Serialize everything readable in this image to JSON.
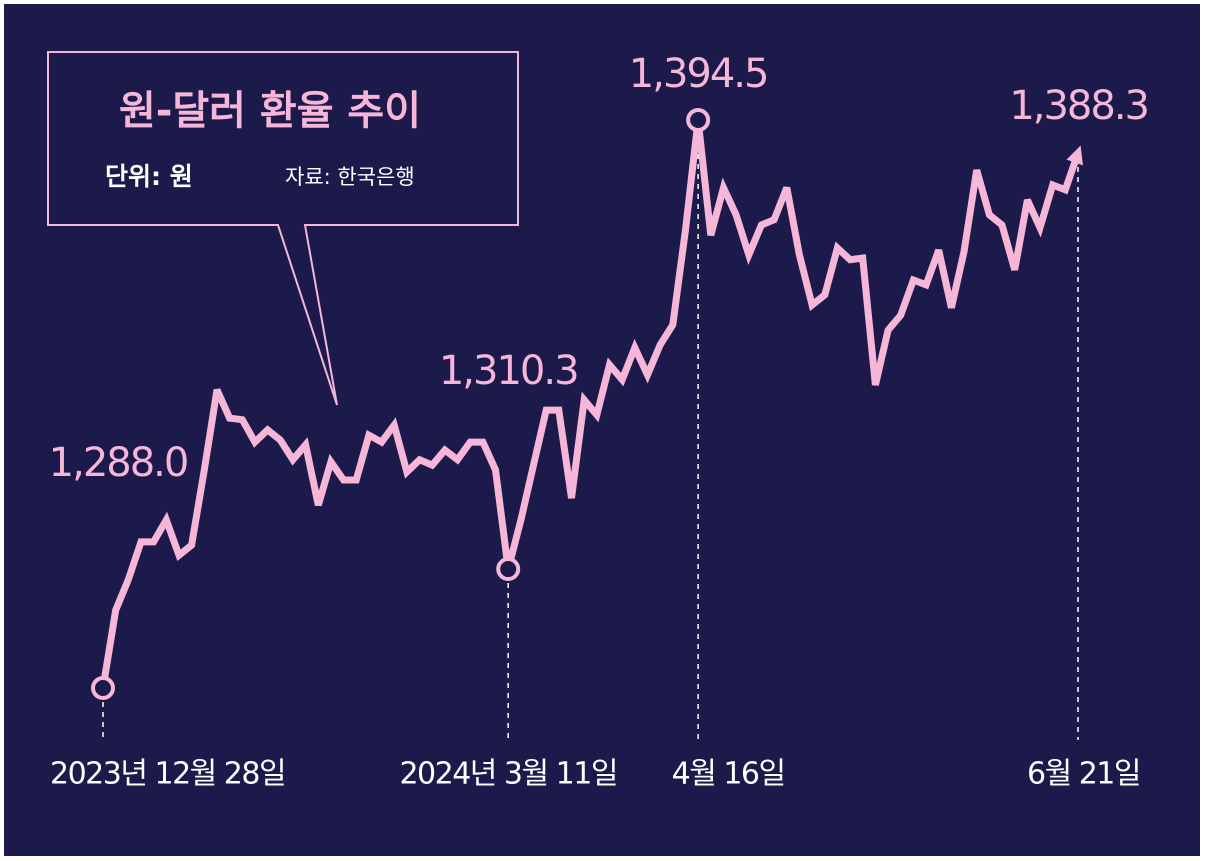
{
  "chart_data": {
    "type": "line",
    "title": "원-달러 환율 추이",
    "subtitle": "단위: 원",
    "source": "자료: 한국은행",
    "categories": [
      "2023년 12월 28일",
      null,
      null,
      null,
      null,
      null,
      null,
      null,
      null,
      null,
      null,
      null,
      null,
      null,
      null,
      null,
      null,
      null,
      null,
      null,
      null,
      null,
      null,
      null,
      null,
      null,
      null,
      null,
      null,
      null,
      null,
      null,
      "2024년 3월 11일",
      null,
      null,
      null,
      null,
      null,
      null,
      null,
      null,
      null,
      null,
      null,
      null,
      null,
      null,
      "4월 16일",
      null,
      null,
      null,
      null,
      null,
      null,
      null,
      null,
      null,
      null,
      null,
      null,
      null,
      null,
      null,
      null,
      null,
      null,
      null,
      null,
      null,
      null,
      null,
      null,
      null,
      null,
      null,
      null,
      null,
      "6월 21일"
    ],
    "values": [
      1288.0,
      1302.6,
      1308.3,
      1315.4,
      1315.4,
      1319.5,
      1312.9,
      1314.8,
      1328.9,
      1343.9,
      1338.6,
      1338.3,
      1334.1,
      1336.4,
      1334.5,
      1330.8,
      1333.6,
      1322.3,
      1330.4,
      1327.0,
      1327.0,
      1335.4,
      1334.1,
      1337.3,
      1328.5,
      1330.8,
      1329.8,
      1332.6,
      1330.8,
      1334.1,
      1334.1,
      1328.9,
      1310.3,
      1319.5,
      1329.8,
      1340.1,
      1340.1,
      1323.6,
      1342.0,
      1339.2,
      1348.6,
      1345.8,
      1351.8,
      1346.7,
      1352.3,
      1356.1,
      1373.9,
      1394.5,
      1372.9,
      1381.8,
      1376.7,
      1369.2,
      1374.8,
      1375.8,
      1381.8,
      1369.2,
      1359.8,
      1361.7,
      1370.5,
      1368.3,
      1368.6,
      1344.8,
      1355.1,
      1357.9,
      1364.5,
      1363.6,
      1370.1,
      1359.3,
      1369.8,
      1385.1,
      1376.7,
      1374.8,
      1366.4,
      1379.5,
      1374.3,
      1382.3,
      1381.4,
      1388.3
    ],
    "value_labels": [
      "1,288.0",
      null,
      null,
      null,
      null,
      null,
      null,
      null,
      null,
      null,
      null,
      null,
      null,
      null,
      null,
      null,
      null,
      null,
      null,
      null,
      null,
      null,
      null,
      null,
      null,
      null,
      null,
      null,
      null,
      null,
      null,
      null,
      "1,310.3",
      null,
      null,
      null,
      null,
      null,
      null,
      null,
      null,
      null,
      null,
      null,
      null,
      null,
      null,
      "1,394.5",
      null,
      null,
      null,
      null,
      null,
      null,
      null,
      null,
      null,
      null,
      null,
      null,
      null,
      null,
      null,
      null,
      null,
      null,
      null,
      null,
      null,
      null,
      null,
      null,
      null,
      null,
      null,
      null,
      null,
      "1,388.3"
    ],
    "color": "#f5b6d8",
    "ylim": [
      1270,
      1410
    ]
  }
}
